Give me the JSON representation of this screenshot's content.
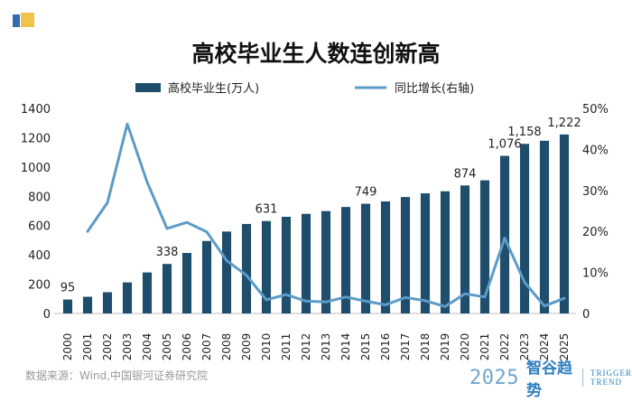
{
  "chart_data": {
    "type": "bar+line",
    "title": "高校毕业生人数连创新高",
    "categories": [
      "2000",
      "2001",
      "2002",
      "2003",
      "2004",
      "2005",
      "2006",
      "2007",
      "2008",
      "2009",
      "2010",
      "2011",
      "2012",
      "2013",
      "2014",
      "2015",
      "2016",
      "2017",
      "2018",
      "2019",
      "2020",
      "2021",
      "2022",
      "2023",
      "2024",
      "2025"
    ],
    "series": [
      {
        "name": "高校毕业生(万人)",
        "type": "bar",
        "axis": "left",
        "color": "#1f4e6d",
        "values": [
          95,
          114,
          145,
          212,
          280,
          338,
          413,
          495,
          559,
          611,
          631,
          660,
          680,
          699,
          727,
          749,
          765,
          795,
          820,
          834,
          874,
          909,
          1076,
          1158,
          1179,
          1222
        ]
      },
      {
        "name": "同比增长(右轴)",
        "type": "line",
        "axis": "right",
        "color": "#5b9bc8",
        "values": [
          null,
          20.0,
          27.0,
          46.2,
          32.0,
          20.7,
          22.2,
          19.9,
          12.9,
          9.3,
          3.3,
          4.6,
          3.0,
          2.8,
          4.0,
          3.0,
          2.1,
          3.9,
          3.1,
          1.7,
          4.8,
          4.0,
          18.4,
          7.6,
          1.8,
          3.7
        ]
      }
    ],
    "data_labels": [
      {
        "index": 0,
        "text": "95"
      },
      {
        "index": 5,
        "text": "338"
      },
      {
        "index": 10,
        "text": "631"
      },
      {
        "index": 15,
        "text": "749"
      },
      {
        "index": 20,
        "text": "874"
      },
      {
        "index": 22,
        "text": "1,076"
      },
      {
        "index": 23,
        "text": "1,158"
      },
      {
        "index": 25,
        "text": "1,222"
      }
    ],
    "y_left": {
      "min": 0,
      "max": 1400,
      "ticks": [
        "0",
        "200",
        "400",
        "600",
        "800",
        "1000",
        "1200",
        "1400"
      ]
    },
    "y_right": {
      "min": 0,
      "max": 50,
      "ticks": [
        "0",
        "10%",
        "20%",
        "30%",
        "40%",
        "50%"
      ]
    },
    "legend_position": "top"
  },
  "source_text": "数据来源：Wind,中国银河证券研究院",
  "brand": {
    "year": "2025",
    "name_cn": "智谷趋势",
    "name_en_line1": "TRIGGER",
    "name_en_line2": "TREND"
  }
}
